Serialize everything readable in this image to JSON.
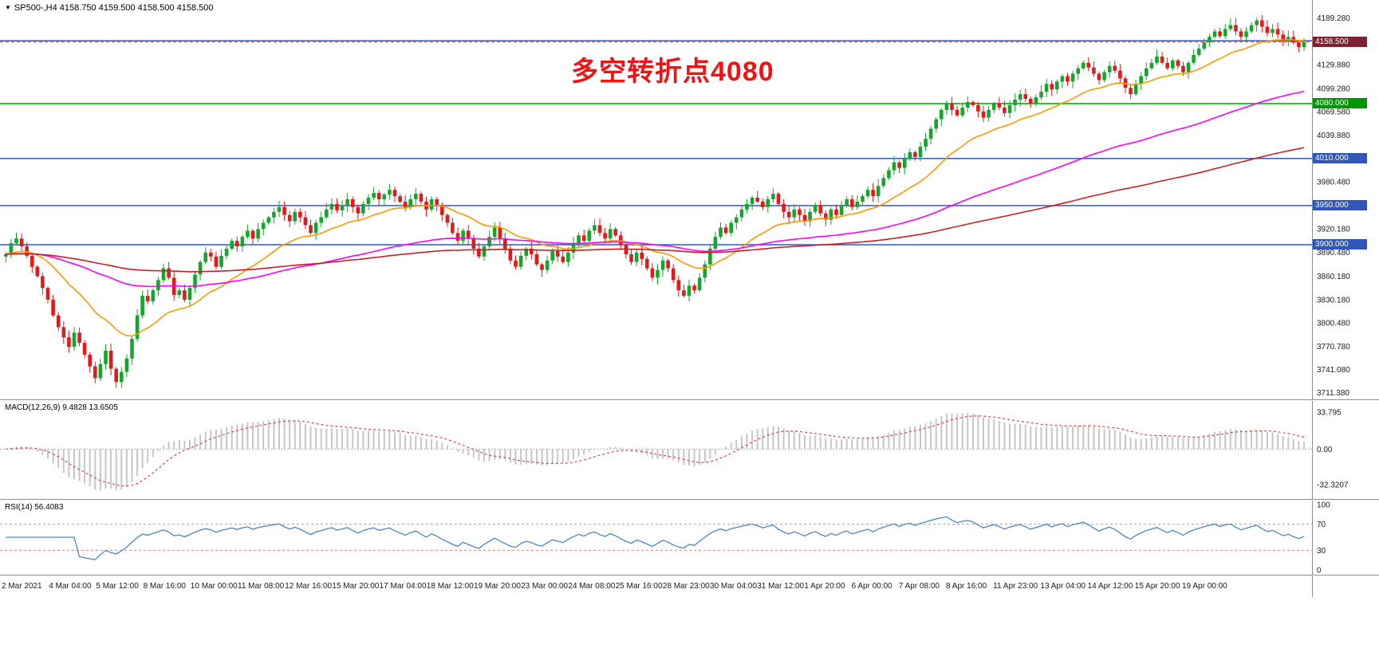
{
  "header": {
    "dropdown_glyph": "▼",
    "title": "SP500-,H4  4158.750 4159.500 4158.500 4158.500"
  },
  "annotation": {
    "text": "多空转折点4080",
    "color": "#ee1414"
  },
  "price_axis": {
    "current": {
      "value": "4158.500",
      "price": 4158.5,
      "bg": "#7c2230"
    },
    "labels": [
      "4189.280",
      "4129.880",
      "4099.280",
      "4069.580",
      "4039.880",
      "3980.480",
      "3920.180",
      "3890.480",
      "3860.180",
      "3830.180",
      "3800.480",
      "3770.780",
      "3741.080",
      "3711.380"
    ]
  },
  "chart_data": {
    "type": "candlestick",
    "symbol": "SP500-",
    "timeframe": "H4",
    "ohlc_readout": {
      "open": "4158.750",
      "high": "4159.500",
      "low": "4158.500",
      "close": "4158.500"
    },
    "y_domain": [
      3705,
      4210
    ],
    "first_open": 3885,
    "closes": [
      3888,
      3902,
      3908,
      3898,
      3886,
      3872,
      3860,
      3845,
      3830,
      3810,
      3795,
      3782,
      3770,
      3788,
      3775,
      3760,
      3745,
      3730,
      3748,
      3765,
      3742,
      3725,
      3738,
      3755,
      3780,
      3810,
      3835,
      3828,
      3842,
      3855,
      3870,
      3858,
      3836,
      3842,
      3830,
      3845,
      3862,
      3878,
      3890,
      3885,
      3872,
      3886,
      3895,
      3905,
      3898,
      3910,
      3918,
      3908,
      3920,
      3928,
      3935,
      3942,
      3948,
      3938,
      3930,
      3942,
      3935,
      3925,
      3915,
      3928,
      3935,
      3945,
      3952,
      3944,
      3950,
      3958,
      3948,
      3940,
      3952,
      3960,
      3966,
      3958,
      3964,
      3970,
      3962,
      3955,
      3948,
      3958,
      3965,
      3955,
      3945,
      3958,
      3950,
      3938,
      3928,
      3915,
      3905,
      3918,
      3908,
      3895,
      3885,
      3898,
      3910,
      3922,
      3908,
      3895,
      3880,
      3872,
      3886,
      3895,
      3888,
      3875,
      3868,
      3880,
      3892,
      3885,
      3878,
      3890,
      3902,
      3912,
      3905,
      3918,
      3925,
      3915,
      3908,
      3920,
      3912,
      3900,
      3888,
      3878,
      3890,
      3882,
      3870,
      3858,
      3868,
      3880,
      3870,
      3855,
      3842,
      3835,
      3848,
      3842,
      3858,
      3875,
      3895,
      3910,
      3922,
      3915,
      3928,
      3935,
      3945,
      3952,
      3960,
      3955,
      3948,
      3958,
      3965,
      3952,
      3942,
      3935,
      3945,
      3938,
      3930,
      3942,
      3950,
      3940,
      3932,
      3945,
      3938,
      3950,
      3958,
      3948,
      3955,
      3962,
      3970,
      3962,
      3975,
      3985,
      3995,
      4005,
      3998,
      4010,
      4018,
      4012,
      4025,
      4035,
      4048,
      4060,
      4072,
      4080,
      4072,
      4065,
      4075,
      4082,
      4078,
      4070,
      4062,
      4072,
      4080,
      4075,
      4068,
      4078,
      4085,
      4092,
      4086,
      4080,
      4088,
      4095,
      4105,
      4098,
      4108,
      4115,
      4108,
      4118,
      4125,
      4132,
      4126,
      4118,
      4110,
      4120,
      4128,
      4122,
      4112,
      4100,
      4092,
      4105,
      4115,
      4125,
      4132,
      4140,
      4132,
      4125,
      4135,
      4128,
      4120,
      4132,
      4142,
      4150,
      4158,
      4165,
      4172,
      4166,
      4175,
      4180,
      4172,
      4165,
      4172,
      4180,
      4186,
      4178,
      4170,
      4175,
      4168,
      4160,
      4165,
      4158,
      4152,
      4158.5
    ],
    "colors": {
      "up": "#16a52c",
      "down": "#e01b1b"
    },
    "levels": [
      {
        "price": 4160.0,
        "color": "#3a66cc",
        "tag": null,
        "tag_bg": null
      },
      {
        "price": 4080.0,
        "color": "#00b400",
        "tag": "4080.000",
        "tag_bg": "#009600"
      },
      {
        "price": 4010.0,
        "color": "#3a66cc",
        "tag": "4010.000",
        "tag_bg": "#3156ba"
      },
      {
        "price": 3950.0,
        "color": "#3a66cc",
        "tag": "3950.000",
        "tag_bg": "#3156ba"
      },
      {
        "price": 3900.0,
        "color": "#3a66cc",
        "tag": "3900.000",
        "tag_bg": "#3156ba"
      }
    ],
    "indicators": {
      "ma_fast": {
        "type": "ema",
        "period": 21,
        "color": "#ff9900"
      },
      "ma_mid": {
        "type": "ema",
        "period": 90,
        "color": "#ff00ff"
      },
      "ma_slow": {
        "type": "ema",
        "period": 200,
        "color": "#cc2020"
      },
      "macd": {
        "fast": 12,
        "slow": 26,
        "signal": 9,
        "display": "MACD(12,26,9) 9.4828 13.6505",
        "value": 9.4828,
        "signal_value": 13.6505,
        "axis": [
          "33.795",
          "0.00",
          "-32.3207"
        ],
        "hist_color": "#c6c6c6",
        "signal_color": "#e04545"
      },
      "rsi": {
        "period": 14,
        "display": "RSI(14) 56.4083",
        "value": 56.4083,
        "axis": [
          "100",
          "70",
          "30",
          "0"
        ],
        "levels": [
          70,
          30
        ],
        "color": "#4a86c8",
        "level_color": "#c98f8f"
      }
    },
    "time_labels": [
      "2 Mar 2021",
      "4 Mar 04:00",
      "5 Mar 12:00",
      "8 Mar 16:00",
      "10 Mar 00:00",
      "11 Mar 08:00",
      "12 Mar 16:00",
      "15 Mar 20:00",
      "17 Mar 04:00",
      "18 Mar 12:00",
      "19 Mar 20:00",
      "23 Mar 00:00",
      "24 Mar 08:00",
      "25 Mar 16:00",
      "28 Mar 23:00",
      "30 Mar 04:00",
      "31 Mar 12:00",
      "1 Apr 20:00",
      "6 Apr 00:00",
      "7 Apr 08:00",
      "8 Apr 16:00",
      "11 Apr 23:00",
      "13 Apr 04:00",
      "14 Apr 12:00",
      "15 Apr 20:00",
      "19 Apr 00:00"
    ]
  }
}
